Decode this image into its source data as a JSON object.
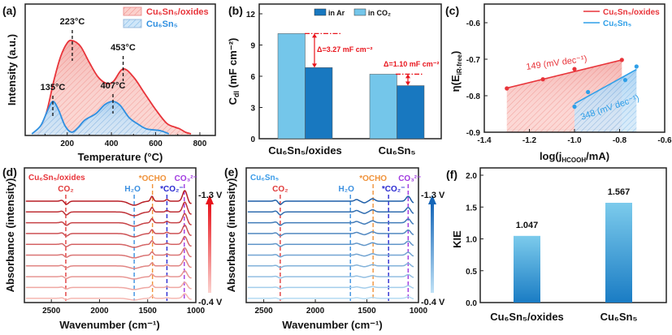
{
  "chart_data": [
    {
      "panel": "(a)",
      "type": "area",
      "xlabel": "Temperature (°C)",
      "ylabel": "Intensity (a.u.)",
      "xlim": [
        10,
        870
      ],
      "x_ticks": [
        "200",
        "400",
        "600",
        "800"
      ],
      "x_tick_values": [
        200,
        400,
        600,
        800
      ],
      "legend": [
        "Cu₆Sn₅/oxides",
        "Cu₆Sn₅"
      ],
      "legend_position": "top-right",
      "series": [
        {
          "name": "Cu₆Sn₅/oxides",
          "color": "#e8343a",
          "points": [
            [
              50,
              0
            ],
            [
              80,
              0.05
            ],
            [
              110,
              0.3
            ],
            [
              140,
              0.66
            ],
            [
              170,
              0.95
            ],
            [
              200,
              1.12
            ],
            [
              223,
              1.15
            ],
            [
              260,
              1.08
            ],
            [
              300,
              0.88
            ],
            [
              340,
              0.7
            ],
            [
              380,
              0.62
            ],
            [
              410,
              0.65
            ],
            [
              453,
              0.8
            ],
            [
              500,
              0.7
            ],
            [
              550,
              0.5
            ],
            [
              600,
              0.3
            ],
            [
              650,
              0.13
            ],
            [
              690,
              0.08
            ],
            [
              710,
              0.06
            ],
            [
              735,
              0.02
            ],
            [
              760,
              0
            ]
          ]
        },
        {
          "name": "Cu₆Sn₅",
          "color": "#2f8fe0",
          "points": [
            [
              40,
              0
            ],
            [
              80,
              0.1
            ],
            [
              110,
              0.28
            ],
            [
              135,
              0.4
            ],
            [
              160,
              0.3
            ],
            [
              190,
              0.1
            ],
            [
              220,
              0.02
            ],
            [
              250,
              0.08
            ],
            [
              280,
              0.17
            ],
            [
              330,
              0.25
            ],
            [
              370,
              0.36
            ],
            [
              407,
              0.4
            ],
            [
              440,
              0.35
            ],
            [
              480,
              0.2
            ],
            [
              520,
              0.12
            ],
            [
              560,
              0.06
            ],
            [
              620,
              0.04
            ],
            [
              660,
              0
            ]
          ]
        }
      ],
      "annotations": [
        "223°C",
        "453°C",
        "135°C",
        "407°C"
      ]
    },
    {
      "panel": "(b)",
      "type": "bar",
      "ylabel_main": "C",
      "ylabel_sub": "dl",
      "ylabel_rest": " (mF cm⁻²)",
      "ylim": [
        0,
        12
      ],
      "y_ticks": [
        "0",
        "3",
        "6",
        "9",
        "12"
      ],
      "y_tick_values": [
        0,
        3,
        6,
        9,
        12
      ],
      "categories": [
        "Cu₆Sn₅/oxides",
        "Cu₆Sn₅"
      ],
      "series": [
        {
          "name": "in CO₂",
          "color": "#74c6ea",
          "values": [
            10.1,
            6.2
          ]
        },
        {
          "name": "in Ar",
          "color": "#1878c0",
          "values": [
            6.83,
            5.1
          ]
        }
      ],
      "legend": [
        "in Ar",
        "in CO₂"
      ],
      "annotations": [
        "Δ=3.27 mF cm⁻²",
        "Δ=1.10 mF cm⁻²"
      ]
    },
    {
      "panel": "(c)",
      "type": "scatter",
      "xlabel_pre": "log(j",
      "xlabel_sub": "HCOOH",
      "xlabel_post": "/mA)",
      "ylabel_pre": "η(E",
      "ylabel_sub": "iR-free",
      "ylabel_post": ")",
      "xlim": [
        -1.4,
        -0.6
      ],
      "ylim": [
        -0.9,
        -0.55
      ],
      "x_ticks": [
        "-1.4",
        "-1.2",
        "-1.0",
        "-0.8",
        "-0.6"
      ],
      "x_tick_values": [
        -1.4,
        -1.2,
        -1.0,
        -0.8,
        -0.6
      ],
      "y_ticks": [
        "-0.9",
        "-0.8",
        "-0.7",
        "-0.6"
      ],
      "y_tick_values": [
        -0.9,
        -0.8,
        -0.7,
        -0.6
      ],
      "legend": [
        "Cu₆Sn₅/oxides",
        "Cu₆Sn₅"
      ],
      "legend_position": "top-right",
      "series": [
        {
          "name": "Cu₆Sn₅/oxides",
          "color": "#e8343a",
          "x": [
            -1.3,
            -1.14,
            -1.0,
            -0.79
          ],
          "y": [
            -0.78,
            -0.755,
            -0.727,
            -0.702
          ],
          "fit": [
            [
              -1.3,
              -0.779
            ],
            [
              -0.79,
              -0.702
            ]
          ],
          "slope_label": "149 (mV dec⁻¹)"
        },
        {
          "name": "Cu₆Sn₅",
          "color": "#2f9fe8",
          "x": [
            -1.0,
            -0.94,
            -0.775,
            -0.725
          ],
          "y": [
            -0.83,
            -0.79,
            -0.757,
            -0.72
          ],
          "fit": [
            [
              -1.0,
              -0.822
            ],
            [
              -0.725,
              -0.728
            ]
          ],
          "slope_label": "348 (mV dec⁻¹)"
        }
      ]
    },
    {
      "panel": "(d)",
      "type": "line",
      "sample": "Cu₆Sn₅/oxides",
      "sample_color": "#e8343a",
      "xlabel": "Wavenumber (cm⁻¹)",
      "ylabel": "Absorbance (intensity)",
      "xlim": [
        2780,
        1000
      ],
      "x_ticks": [
        "2500",
        "2000",
        "1500",
        "1000"
      ],
      "x_tick_values": [
        2500,
        2000,
        1500,
        1000
      ],
      "potential_top": "-1.3 V",
      "potential_bottom": "-0.4 V",
      "n_traces": 10,
      "trace_colors": [
        "#b81f26",
        "#f6b8b2"
      ],
      "trace_scale": [
        1,
        0.93,
        0.86,
        0.8,
        0.74,
        0.68,
        0.62,
        0.56,
        0.5,
        0.44
      ],
      "bands": [
        {
          "label": "CO₂",
          "wavenumber": 2350,
          "color": "#e03a3a"
        },
        {
          "label": "H₂O",
          "wavenumber": 1640,
          "color": "#3a8fe0"
        },
        {
          "label": "*OCHO",
          "wavenumber": 1450,
          "color": "#f0923a"
        },
        {
          "label": "*CO₂⁻",
          "wavenumber": 1300,
          "color": "#2a2ad0"
        },
        {
          "label": "CO₃²⁻",
          "wavenumber": 1120,
          "color": "#a03ae0"
        }
      ]
    },
    {
      "panel": "(e)",
      "type": "line",
      "sample": "Cu₆Sn₅",
      "sample_color": "#3a9be8",
      "xlabel": "Wavenumber (cm⁻¹)",
      "ylabel": "Absorbance (intensity)",
      "xlim": [
        2670,
        1000
      ],
      "x_ticks": [
        "2500",
        "2000",
        "1500",
        "1000"
      ],
      "x_tick_values": [
        2500,
        2000,
        1500,
        1000
      ],
      "potential_top": "-1.3 V",
      "potential_bottom": "-0.4 V",
      "n_traces": 10,
      "trace_colors": [
        "#1f5fa8",
        "#b4dbf3"
      ],
      "trace_scale": [
        1,
        0.9,
        0.8,
        0.72,
        0.65,
        0.58,
        0.5,
        0.43,
        0.36,
        0.3
      ],
      "bands": [
        {
          "label": "CO₂",
          "wavenumber": 2340,
          "color": "#e03a3a"
        },
        {
          "label": "H₂O",
          "wavenumber": 1660,
          "color": "#3a8fe0"
        },
        {
          "label": "*OCHO",
          "wavenumber": 1440,
          "color": "#f0923a"
        },
        {
          "label": "*CO₂⁻",
          "wavenumber": 1290,
          "color": "#2a2ad0"
        },
        {
          "label": "CO₃²⁻",
          "wavenumber": 1100,
          "color": "#a03ae0"
        }
      ]
    },
    {
      "panel": "(f)",
      "type": "bar",
      "ylabel": "KIE",
      "ylim": [
        0,
        2.0
      ],
      "y_ticks": [
        "0.0",
        "0.5",
        "1.0",
        "1.5",
        "2.0"
      ],
      "y_tick_values": [
        0,
        0.5,
        1.0,
        1.5,
        2.0
      ],
      "categories": [
        "Cu₆Sn₅/oxides",
        "Cu₆Sn₅"
      ],
      "values": [
        1.047,
        1.567
      ],
      "value_labels": [
        "1.047",
        "1.567"
      ]
    }
  ]
}
